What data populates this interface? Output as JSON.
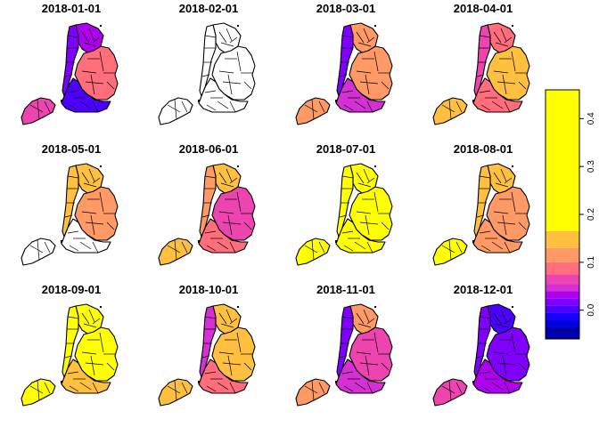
{
  "map": {
    "region": "New York City boroughs",
    "panels": [
      {
        "title": "2018-01-01",
        "boroughs": {
          "si": 0.06,
          "bk": 0.0,
          "qn": 0.09,
          "mn": 0.02,
          "bx": 0.03
        }
      },
      {
        "title": "2018-02-01",
        "boroughs": {
          "si": null,
          "bk": null,
          "qn": null,
          "mn": null,
          "bx": null
        }
      },
      {
        "title": "2018-03-01",
        "boroughs": {
          "si": 0.1,
          "bk": 0.04,
          "qn": 0.11,
          "mn": 0.02,
          "bx": 0.12
        }
      },
      {
        "title": "2018-04-01",
        "boroughs": {
          "si": 0.15,
          "bk": 0.09,
          "qn": 0.14,
          "mn": 0.07,
          "bx": 0.09
        }
      },
      {
        "title": "2018-05-01",
        "boroughs": {
          "si": null,
          "bk": null,
          "qn": 0.1,
          "mn": 0.13,
          "bx": 0.14
        }
      },
      {
        "title": "2018-06-01",
        "boroughs": {
          "si": 0.15,
          "bk": 0.08,
          "qn": 0.06,
          "mn": 0.12,
          "bx": 0.15
        }
      },
      {
        "title": "2018-07-01",
        "boroughs": {
          "si": 0.4,
          "bk": 0.35,
          "qn": 0.4,
          "mn": 0.22,
          "bx": 0.4
        }
      },
      {
        "title": "2018-08-01",
        "boroughs": {
          "si": 0.25,
          "bk": 0.11,
          "qn": 0.12,
          "mn": 0.16,
          "bx": 0.14
        }
      },
      {
        "title": "2018-09-01",
        "boroughs": {
          "si": 0.3,
          "bk": 0.15,
          "qn": 0.3,
          "mn": 0.4,
          "bx": 0.4
        }
      },
      {
        "title": "2018-10-01",
        "boroughs": {
          "si": 0.15,
          "bk": 0.08,
          "qn": 0.13,
          "mn": 0.05,
          "bx": 0.14
        }
      },
      {
        "title": "2018-11-01",
        "boroughs": {
          "si": 0.12,
          "bk": 0.04,
          "qn": 0.06,
          "mn": 0.02,
          "bx": 0.11
        }
      },
      {
        "title": "2018-12-01",
        "boroughs": {
          "si": 0.06,
          "bk": 0.03,
          "qn": 0.02,
          "mn": 0.02,
          "bx": 0.0
        }
      }
    ]
  },
  "legend": {
    "range": [
      -0.06,
      0.46
    ],
    "ticks": [
      "0.0",
      "0.1",
      "0.2",
      "0.3",
      "0.4"
    ],
    "tick_values": [
      0.0,
      0.1,
      0.2,
      0.3,
      0.4
    ],
    "bands": [
      {
        "from": -0.06,
        "to": -0.035,
        "color": "#0000AA"
      },
      {
        "from": -0.035,
        "to": -0.02,
        "color": "#0000DD"
      },
      {
        "from": -0.02,
        "to": -0.005,
        "color": "#1A00FF"
      },
      {
        "from": -0.005,
        "to": 0.01,
        "color": "#4C00FF"
      },
      {
        "from": 0.01,
        "to": 0.025,
        "color": "#8000FF"
      },
      {
        "from": 0.025,
        "to": 0.04,
        "color": "#B000F0"
      },
      {
        "from": 0.04,
        "to": 0.055,
        "color": "#D430D4"
      },
      {
        "from": 0.055,
        "to": 0.075,
        "color": "#EE44B0"
      },
      {
        "from": 0.075,
        "to": 0.1,
        "color": "#FF6E7A"
      },
      {
        "from": 0.1,
        "to": 0.13,
        "color": "#FF9966"
      },
      {
        "from": 0.13,
        "to": 0.165,
        "color": "#FFC040"
      },
      {
        "from": 0.165,
        "to": 0.46,
        "color": "#FFFF00"
      }
    ]
  }
}
